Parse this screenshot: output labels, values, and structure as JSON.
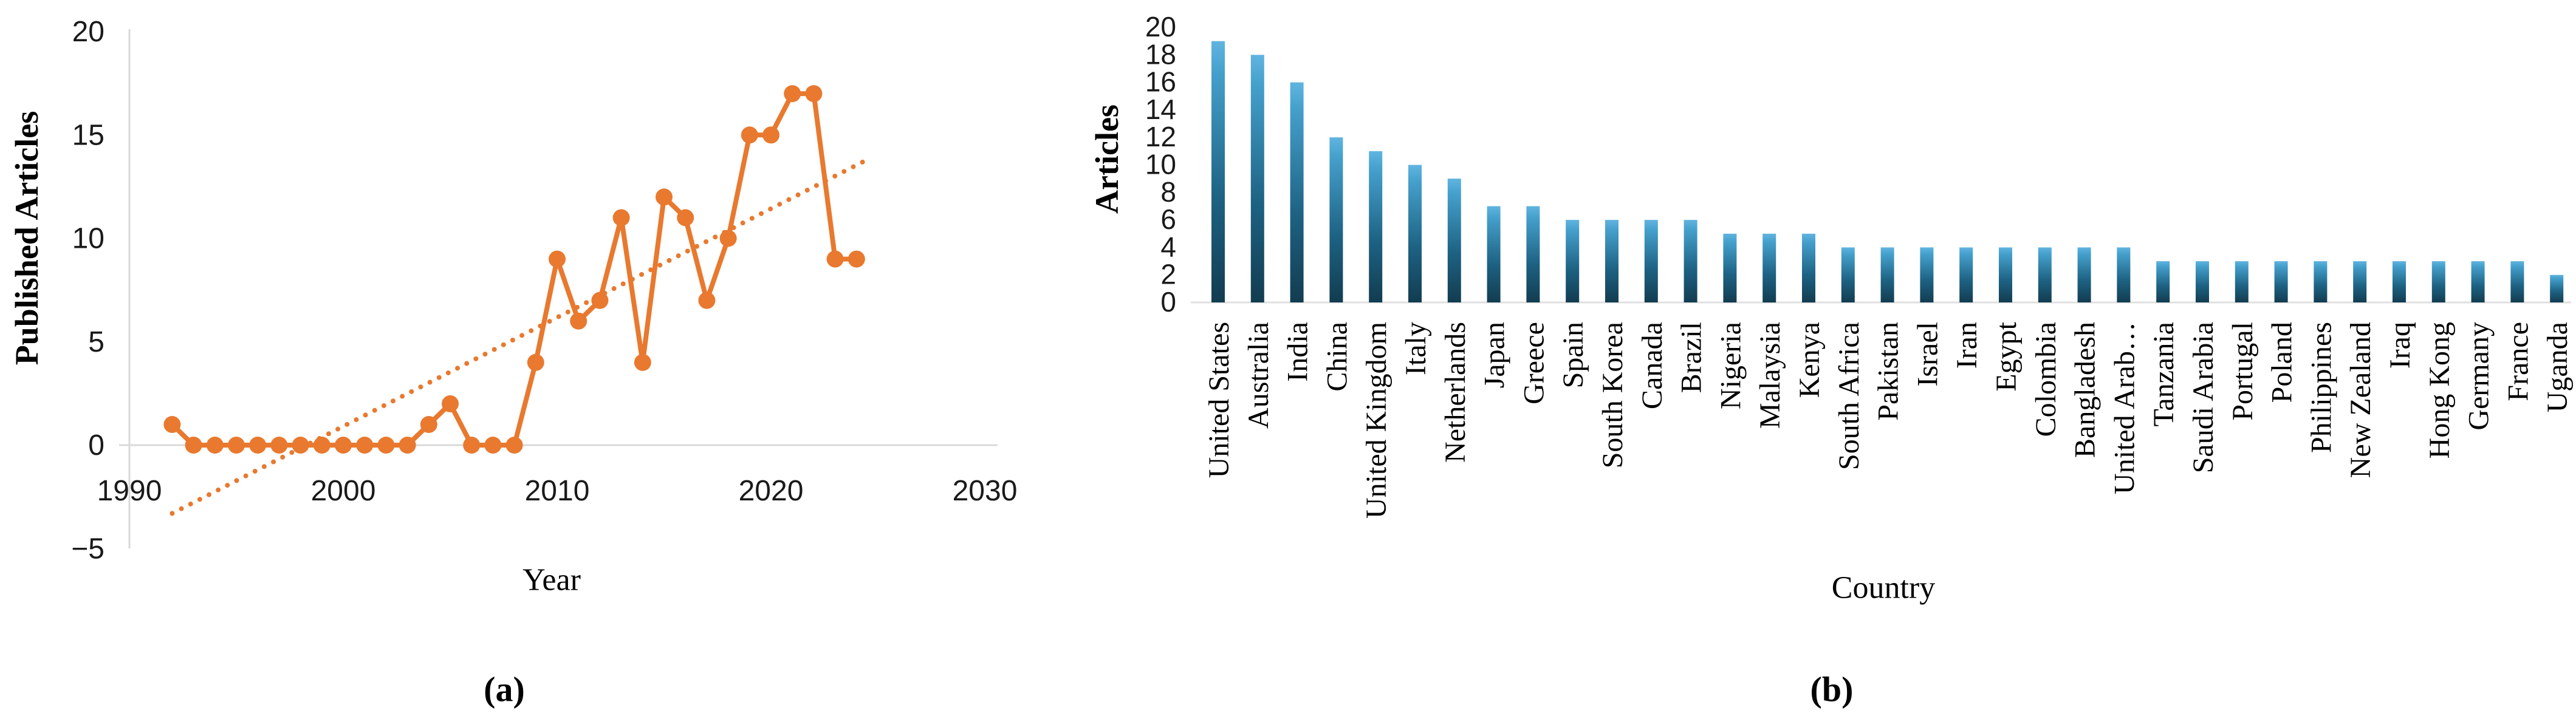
{
  "figure": {
    "captions": {
      "a": "(a)",
      "b": "(b)"
    }
  },
  "chart_data": [
    {
      "panel": "a",
      "type": "line",
      "title": "",
      "xlabel": "Year",
      "ylabel": "Published Articles",
      "x": [
        1992,
        1993,
        1994,
        1995,
        1996,
        1997,
        1998,
        1999,
        2000,
        2001,
        2002,
        2003,
        2004,
        2005,
        2006,
        2007,
        2008,
        2009,
        2010,
        2011,
        2012,
        2013,
        2014,
        2015,
        2016,
        2017,
        2018,
        2019,
        2020,
        2021,
        2022,
        2023,
        2024
      ],
      "values": [
        1,
        0,
        0,
        0,
        0,
        0,
        0,
        0,
        0,
        0,
        0,
        0,
        1,
        2,
        0,
        0,
        0,
        4,
        9,
        6,
        7,
        11,
        4,
        12,
        11,
        7,
        10,
        15,
        15,
        17,
        17,
        9,
        9
      ],
      "trendline": {
        "style": "dotted",
        "x_start": 1992,
        "y_start": -3.3,
        "x_end": 2024.3,
        "y_end": 13.7
      },
      "xticks": [
        1990,
        2000,
        2010,
        2020,
        2030
      ],
      "yticks": [
        20,
        15,
        10,
        5,
        0,
        -5
      ],
      "xlim": [
        1990,
        2030.6
      ],
      "ylim": [
        -5,
        20
      ],
      "grid": "zero-line-only",
      "legend": "none",
      "series_color": "#E8792F",
      "axis_color": "#D9D9D9",
      "tick_color": "#1a1a1a"
    },
    {
      "panel": "b",
      "type": "bar",
      "title": "",
      "xlabel": "Country",
      "ylabel": "Articles",
      "categories": [
        "United States",
        "Australia",
        "India",
        "China",
        "United Kingdom",
        "Italy",
        "Netherlands",
        "Japan",
        "Greece",
        "Spain",
        "South Korea",
        "Canada",
        "Brazil",
        "Nigeria",
        "Malaysia",
        "Kenya",
        "South Africa",
        "Pakistan",
        "Israel",
        "Iran",
        "Egypt",
        "Colombia",
        "Bangladesh",
        "United Arab…",
        "Tanzania",
        "Saudi Arabia",
        "Portugal",
        "Poland",
        "Philippines",
        "New Zealand",
        "Iraq",
        "Hong Kong",
        "Germany",
        "France",
        "Uganda"
      ],
      "values": [
        19,
        18,
        16,
        12,
        11,
        10,
        9,
        7,
        7,
        6,
        6,
        6,
        6,
        5,
        5,
        5,
        4,
        4,
        4,
        4,
        4,
        4,
        4,
        4,
        3,
        3,
        3,
        3,
        3,
        3,
        3,
        3,
        3,
        3,
        2
      ],
      "yticks": [
        0,
        2,
        4,
        6,
        8,
        10,
        12,
        14,
        16,
        18,
        20
      ],
      "ylim": [
        0,
        20
      ],
      "grid": "off",
      "legend": "none",
      "bar_gradient": {
        "top": "#61B4E0",
        "upper": "#45A0CC",
        "lower": "#1D6283",
        "bottom": "#123C50"
      },
      "baseline_color": "#E0E0E0",
      "tick_color": "#1a1a1a"
    }
  ]
}
